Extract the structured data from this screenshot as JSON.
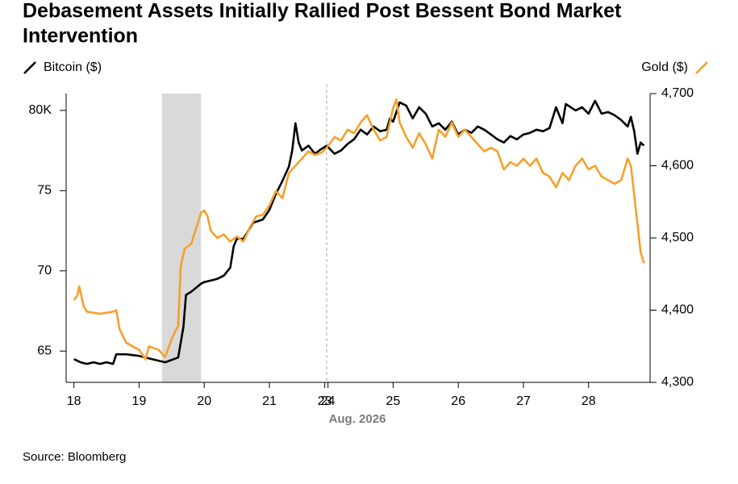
{
  "chart_data": {
    "type": "line",
    "title": [
      "Debasement Assets Initially Rallied Post Bessent Bond Market",
      "Intervention"
    ],
    "xlabel": "Aug. 2026",
    "source": "Source: Bloomberg",
    "xlim": [
      -0.12,
      8.77
    ],
    "xticks": [
      {
        "value": 0,
        "label": "18"
      },
      {
        "value": 1,
        "label": "19"
      },
      {
        "value": 2,
        "label": "20"
      },
      {
        "value": 3,
        "label": "21"
      },
      {
        "value": 3.85,
        "label": "23"
      },
      {
        "value": 3.9,
        "label": "24"
      },
      {
        "value": 4.9,
        "label": "25"
      },
      {
        "value": 5.9,
        "label": "26"
      },
      {
        "value": 6.9,
        "label": "27"
      },
      {
        "value": 7.9,
        "label": "28"
      }
    ],
    "ylim": [
      63.05,
      81.05
    ],
    "yticks": [
      65,
      70,
      75,
      {
        "value": 80,
        "label": "80K"
      }
    ],
    "y2lim": [
      4300,
      4700
    ],
    "y2ticks": [
      {
        "value": 4300,
        "label": "4,300"
      },
      {
        "value": 4400,
        "label": "4,400"
      },
      {
        "value": 4500,
        "label": "4,500"
      },
      {
        "value": 4600,
        "label": "4,600"
      },
      {
        "value": 4700,
        "label": "4,700"
      }
    ],
    "shade": [
      1.35,
      1.95
    ],
    "divider": 3.88,
    "series": [
      {
        "name": "Bitcoin ($)",
        "color": "#000000",
        "axis": "y",
        "x": [
          0,
          0.1,
          0.2,
          0.3,
          0.4,
          0.5,
          0.6,
          0.65,
          0.8,
          1.0,
          1.2,
          1.4,
          1.6,
          1.68,
          1.72,
          1.8,
          1.95,
          2.0,
          2.1,
          2.2,
          2.3,
          2.4,
          2.45,
          2.5,
          2.6,
          2.75,
          2.9,
          3.0,
          3.1,
          3.2,
          3.3,
          3.35,
          3.4,
          3.45,
          3.5,
          3.6,
          3.7,
          3.8,
          3.88,
          4.0,
          4.1,
          4.2,
          4.3,
          4.4,
          4.5,
          4.6,
          4.7,
          4.8,
          4.85,
          4.9,
          5.0,
          5.1,
          5.2,
          5.3,
          5.4,
          5.5,
          5.6,
          5.7,
          5.8,
          5.9,
          6.0,
          6.1,
          6.2,
          6.3,
          6.4,
          6.5,
          6.6,
          6.7,
          6.8,
          6.9,
          7.0,
          7.1,
          7.2,
          7.3,
          7.4,
          7.5,
          7.55,
          7.7,
          7.8,
          7.9,
          8.0,
          8.1,
          8.2,
          8.3,
          8.4,
          8.5,
          8.55,
          8.6,
          8.65,
          8.7,
          8.75
        ],
        "values": [
          64.5,
          64.3,
          64.2,
          64.3,
          64.2,
          64.3,
          64.2,
          64.8,
          64.8,
          64.7,
          64.5,
          64.3,
          64.6,
          66.5,
          68.5,
          68.7,
          69.2,
          69.3,
          69.4,
          69.5,
          69.7,
          70.2,
          71.5,
          72.0,
          72.0,
          73.0,
          73.2,
          73.8,
          74.8,
          75.6,
          76.5,
          77.5,
          79.2,
          78.0,
          77.5,
          77.8,
          77.3,
          77.6,
          77.8,
          77.3,
          77.5,
          77.9,
          78.2,
          78.8,
          78.5,
          79.0,
          78.7,
          78.8,
          79.5,
          79.3,
          80.5,
          80.3,
          79.5,
          80.2,
          79.8,
          79.0,
          79.2,
          78.8,
          79.3,
          78.5,
          78.8,
          78.6,
          79.0,
          78.8,
          78.5,
          78.2,
          78.0,
          78.4,
          78.2,
          78.5,
          78.6,
          78.8,
          78.7,
          78.9,
          80.2,
          79.2,
          80.4,
          80.0,
          80.2,
          79.8,
          80.6,
          79.8,
          79.9,
          79.7,
          79.4,
          79.0,
          79.6,
          78.7,
          77.3,
          78.0,
          77.8
        ]
      },
      {
        "name": "Gold ($)",
        "color": "#f5a02a",
        "axis": "y2",
        "x": [
          0,
          0.05,
          0.08,
          0.15,
          0.2,
          0.4,
          0.6,
          0.65,
          0.7,
          0.8,
          1.0,
          1.1,
          1.15,
          1.3,
          1.4,
          1.5,
          1.55,
          1.6,
          1.64,
          1.7,
          1.8,
          1.9,
          1.95,
          2.0,
          2.05,
          2.1,
          2.2,
          2.3,
          2.4,
          2.5,
          2.6,
          2.7,
          2.8,
          2.9,
          3.0,
          3.1,
          3.2,
          3.3,
          3.4,
          3.5,
          3.6,
          3.7,
          3.8,
          3.88,
          4.0,
          4.1,
          4.2,
          4.3,
          4.4,
          4.5,
          4.6,
          4.7,
          4.8,
          4.9,
          4.95,
          5.0,
          5.1,
          5.2,
          5.3,
          5.4,
          5.5,
          5.6,
          5.7,
          5.8,
          5.9,
          6.0,
          6.1,
          6.2,
          6.3,
          6.4,
          6.5,
          6.6,
          6.7,
          6.8,
          6.9,
          7.0,
          7.1,
          7.2,
          7.3,
          7.4,
          7.5,
          7.6,
          7.7,
          7.8,
          7.9,
          8.0,
          8.1,
          8.2,
          8.3,
          8.4,
          8.5,
          8.55,
          8.6,
          8.65,
          8.7,
          8.75
        ],
        "values": [
          4414,
          4420,
          4433,
          4405,
          4398,
          4395,
          4398,
          4400,
          4374,
          4355,
          4345,
          4332,
          4350,
          4345,
          4335,
          4360,
          4370,
          4378,
          4461,
          4485,
          4492,
          4520,
          4535,
          4538,
          4530,
          4510,
          4500,
          4505,
          4495,
          4502,
          4495,
          4515,
          4530,
          4532,
          4545,
          4565,
          4555,
          4590,
          4600,
          4610,
          4620,
          4615,
          4618,
          4625,
          4640,
          4635,
          4650,
          4645,
          4660,
          4670,
          4650,
          4635,
          4640,
          4680,
          4692,
          4660,
          4640,
          4625,
          4645,
          4630,
          4610,
          4650,
          4640,
          4660,
          4640,
          4650,
          4640,
          4630,
          4620,
          4625,
          4620,
          4595,
          4605,
          4600,
          4610,
          4600,
          4610,
          4590,
          4585,
          4570,
          4590,
          4580,
          4600,
          4610,
          4595,
          4600,
          4585,
          4580,
          4575,
          4580,
          4610,
          4600,
          4560,
          4520,
          4480,
          4465
        ]
      }
    ]
  }
}
